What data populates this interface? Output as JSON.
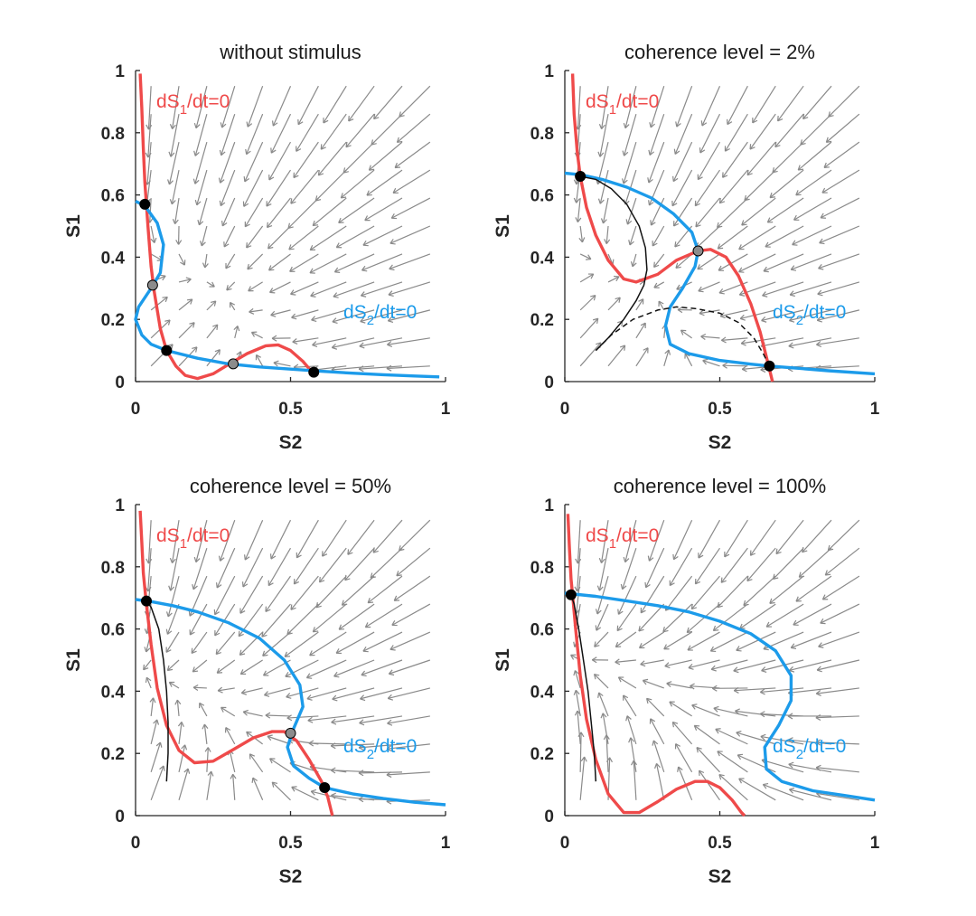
{
  "chart_data": [
    {
      "type": "line",
      "title": "without stimulus",
      "xlabel": "S2",
      "ylabel": "S1",
      "xlim": [
        0,
        1
      ],
      "ylim": [
        0,
        1
      ],
      "xticks": [
        "0",
        "0.5",
        "1"
      ],
      "yticks": [
        "0",
        "0.2",
        "0.4",
        "0.6",
        "0.8",
        "1"
      ],
      "vector_field": true,
      "series": [
        {
          "name": "dS1/dt=0",
          "color": "#ef4a4a",
          "points": [
            [
              0.015,
              0.99
            ],
            [
              0.02,
              0.88
            ],
            [
              0.025,
              0.75
            ],
            [
              0.03,
              0.64
            ],
            [
              0.04,
              0.5
            ],
            [
              0.05,
              0.37
            ],
            [
              0.06,
              0.29
            ],
            [
              0.08,
              0.17
            ],
            [
              0.1,
              0.1
            ],
            [
              0.13,
              0.05
            ],
            [
              0.16,
              0.02
            ],
            [
              0.2,
              0.01
            ],
            [
              0.25,
              0.025
            ],
            [
              0.3,
              0.055
            ],
            [
              0.36,
              0.09
            ],
            [
              0.42,
              0.115
            ],
            [
              0.46,
              0.118
            ],
            [
              0.5,
              0.1
            ],
            [
              0.54,
              0.065
            ],
            [
              0.57,
              0.03
            ],
            [
              0.58,
              0.02
            ]
          ]
        },
        {
          "name": "dS2/dt=0",
          "color": "#1c9bea",
          "points": [
            [
              0.0,
              0.58
            ],
            [
              0.03,
              0.565
            ],
            [
              0.07,
              0.51
            ],
            [
              0.09,
              0.44
            ],
            [
              0.08,
              0.35
            ],
            [
              0.05,
              0.3
            ],
            [
              0.01,
              0.24
            ],
            [
              0.0,
              0.2
            ],
            [
              0.02,
              0.15
            ],
            [
              0.05,
              0.12
            ],
            [
              0.1,
              0.1
            ],
            [
              0.2,
              0.075
            ],
            [
              0.3,
              0.057
            ],
            [
              0.4,
              0.047
            ],
            [
              0.5,
              0.04
            ],
            [
              0.6,
              0.033
            ],
            [
              0.7,
              0.027
            ],
            [
              0.8,
              0.022
            ],
            [
              0.9,
              0.018
            ],
            [
              0.98,
              0.015
            ]
          ]
        }
      ],
      "fixed_points": [
        {
          "x": 0.03,
          "y": 0.57,
          "stable": true
        },
        {
          "x": 0.055,
          "y": 0.31,
          "stable": false
        },
        {
          "x": 0.1,
          "y": 0.1,
          "stable": true
        },
        {
          "x": 0.315,
          "y": 0.057,
          "stable": false
        },
        {
          "x": 0.575,
          "y": 0.03,
          "stable": true
        }
      ],
      "trajectories": []
    },
    {
      "type": "line",
      "title": "coherence level = 2%",
      "xlabel": "S2",
      "ylabel": "S1",
      "xlim": [
        0,
        1
      ],
      "ylim": [
        0,
        1
      ],
      "xticks": [
        "0",
        "0.5",
        "1"
      ],
      "yticks": [
        "0",
        "0.2",
        "0.4",
        "0.6",
        "0.8",
        "1"
      ],
      "vector_field": true,
      "series": [
        {
          "name": "dS1/dt=0",
          "color": "#ef4a4a",
          "points": [
            [
              0.025,
              0.99
            ],
            [
              0.03,
              0.86
            ],
            [
              0.04,
              0.74
            ],
            [
              0.05,
              0.66
            ],
            [
              0.07,
              0.56
            ],
            [
              0.1,
              0.47
            ],
            [
              0.14,
              0.39
            ],
            [
              0.19,
              0.33
            ],
            [
              0.23,
              0.32
            ],
            [
              0.3,
              0.345
            ],
            [
              0.36,
              0.39
            ],
            [
              0.43,
              0.42
            ],
            [
              0.47,
              0.425
            ],
            [
              0.52,
              0.4
            ],
            [
              0.56,
              0.34
            ],
            [
              0.6,
              0.25
            ],
            [
              0.63,
              0.16
            ],
            [
              0.65,
              0.08
            ],
            [
              0.66,
              0.04
            ],
            [
              0.67,
              0.0
            ]
          ]
        },
        {
          "name": "dS2/dt=0",
          "color": "#1c9bea",
          "points": [
            [
              0.0,
              0.67
            ],
            [
              0.05,
              0.665
            ],
            [
              0.12,
              0.65
            ],
            [
              0.2,
              0.625
            ],
            [
              0.28,
              0.59
            ],
            [
              0.35,
              0.54
            ],
            [
              0.41,
              0.48
            ],
            [
              0.43,
              0.42
            ],
            [
              0.42,
              0.37
            ],
            [
              0.38,
              0.3
            ],
            [
              0.34,
              0.24
            ],
            [
              0.325,
              0.18
            ],
            [
              0.34,
              0.12
            ],
            [
              0.4,
              0.09
            ],
            [
              0.5,
              0.068
            ],
            [
              0.6,
              0.056
            ],
            [
              0.66,
              0.05
            ],
            [
              0.75,
              0.043
            ],
            [
              0.85,
              0.035
            ],
            [
              1.0,
              0.025
            ]
          ]
        }
      ],
      "fixed_points": [
        {
          "x": 0.05,
          "y": 0.66,
          "stable": true
        },
        {
          "x": 0.43,
          "y": 0.42,
          "stable": false
        },
        {
          "x": 0.66,
          "y": 0.05,
          "stable": true
        }
      ],
      "trajectories": [
        {
          "style": "solid",
          "points": [
            [
              0.1,
              0.1
            ],
            [
              0.14,
              0.14
            ],
            [
              0.19,
              0.2
            ],
            [
              0.23,
              0.26
            ],
            [
              0.255,
              0.31
            ],
            [
              0.265,
              0.36
            ],
            [
              0.26,
              0.43
            ],
            [
              0.24,
              0.5
            ],
            [
              0.2,
              0.57
            ],
            [
              0.15,
              0.62
            ],
            [
              0.1,
              0.65
            ],
            [
              0.05,
              0.66
            ]
          ]
        },
        {
          "style": "dashed",
          "points": [
            [
              0.1,
              0.1
            ],
            [
              0.15,
              0.15
            ],
            [
              0.22,
              0.2
            ],
            [
              0.3,
              0.23
            ],
            [
              0.36,
              0.24
            ],
            [
              0.42,
              0.235
            ],
            [
              0.5,
              0.22
            ],
            [
              0.56,
              0.19
            ],
            [
              0.61,
              0.14
            ],
            [
              0.64,
              0.09
            ],
            [
              0.66,
              0.05
            ]
          ]
        }
      ]
    },
    {
      "type": "line",
      "title": "coherence level = 50%",
      "xlabel": "S2",
      "ylabel": "S1",
      "xlim": [
        0,
        1
      ],
      "ylim": [
        0,
        1
      ],
      "xticks": [
        "0",
        "0.5",
        "1"
      ],
      "yticks": [
        "0",
        "0.2",
        "0.4",
        "0.6",
        "0.8",
        "1"
      ],
      "vector_field": true,
      "series": [
        {
          "name": "dS1/dt=0",
          "color": "#ef4a4a",
          "points": [
            [
              0.015,
              0.98
            ],
            [
              0.02,
              0.88
            ],
            [
              0.025,
              0.78
            ],
            [
              0.035,
              0.68
            ],
            [
              0.05,
              0.55
            ],
            [
              0.07,
              0.41
            ],
            [
              0.1,
              0.29
            ],
            [
              0.14,
              0.21
            ],
            [
              0.19,
              0.17
            ],
            [
              0.25,
              0.175
            ],
            [
              0.32,
              0.215
            ],
            [
              0.38,
              0.25
            ],
            [
              0.44,
              0.27
            ],
            [
              0.48,
              0.27
            ],
            [
              0.52,
              0.24
            ],
            [
              0.56,
              0.18
            ],
            [
              0.6,
              0.11
            ],
            [
              0.62,
              0.06
            ],
            [
              0.635,
              0.0
            ]
          ]
        },
        {
          "name": "dS2/dt=0",
          "color": "#1c9bea",
          "points": [
            [
              0.0,
              0.695
            ],
            [
              0.05,
              0.688
            ],
            [
              0.12,
              0.675
            ],
            [
              0.2,
              0.655
            ],
            [
              0.3,
              0.62
            ],
            [
              0.4,
              0.57
            ],
            [
              0.48,
              0.5
            ],
            [
              0.53,
              0.42
            ],
            [
              0.54,
              0.35
            ],
            [
              0.51,
              0.28
            ],
            [
              0.49,
              0.22
            ],
            [
              0.51,
              0.16
            ],
            [
              0.56,
              0.12
            ],
            [
              0.61,
              0.09
            ],
            [
              0.7,
              0.07
            ],
            [
              0.8,
              0.055
            ],
            [
              0.9,
              0.043
            ],
            [
              1.0,
              0.035
            ]
          ]
        }
      ],
      "fixed_points": [
        {
          "x": 0.035,
          "y": 0.69,
          "stable": true
        },
        {
          "x": 0.5,
          "y": 0.265,
          "stable": false
        },
        {
          "x": 0.61,
          "y": 0.09,
          "stable": true
        }
      ],
      "trajectories": [
        {
          "style": "solid",
          "points": [
            [
              0.1,
              0.11
            ],
            [
              0.105,
              0.2
            ],
            [
              0.105,
              0.3
            ],
            [
              0.1,
              0.4
            ],
            [
              0.09,
              0.5
            ],
            [
              0.075,
              0.6
            ],
            [
              0.05,
              0.67
            ],
            [
              0.035,
              0.69
            ]
          ]
        }
      ]
    },
    {
      "type": "line",
      "title": "coherence level = 100%",
      "xlabel": "S2",
      "ylabel": "S1",
      "xlim": [
        0,
        1
      ],
      "ylim": [
        0,
        1
      ],
      "xticks": [
        "0",
        "0.5",
        "1"
      ],
      "yticks": [
        "0",
        "0.2",
        "0.4",
        "0.6",
        "0.8",
        "1"
      ],
      "vector_field": true,
      "series": [
        {
          "name": "dS1/dt=0",
          "color": "#ef4a4a",
          "points": [
            [
              0.01,
              0.97
            ],
            [
              0.015,
              0.86
            ],
            [
              0.02,
              0.76
            ],
            [
              0.025,
              0.71
            ],
            [
              0.035,
              0.6
            ],
            [
              0.05,
              0.45
            ],
            [
              0.07,
              0.31
            ],
            [
              0.1,
              0.18
            ],
            [
              0.14,
              0.07
            ],
            [
              0.19,
              0.01
            ],
            [
              0.24,
              0.01
            ],
            [
              0.3,
              0.045
            ],
            [
              0.36,
              0.085
            ],
            [
              0.42,
              0.11
            ],
            [
              0.46,
              0.11
            ],
            [
              0.5,
              0.09
            ],
            [
              0.54,
              0.05
            ],
            [
              0.57,
              0.01
            ],
            [
              0.58,
              0.0
            ]
          ]
        },
        {
          "name": "dS2/dt=0",
          "color": "#1c9bea",
          "points": [
            [
              0.0,
              0.715
            ],
            [
              0.1,
              0.705
            ],
            [
              0.2,
              0.69
            ],
            [
              0.3,
              0.675
            ],
            [
              0.4,
              0.655
            ],
            [
              0.5,
              0.625
            ],
            [
              0.6,
              0.585
            ],
            [
              0.68,
              0.53
            ],
            [
              0.73,
              0.45
            ],
            [
              0.73,
              0.37
            ],
            [
              0.69,
              0.29
            ],
            [
              0.645,
              0.22
            ],
            [
              0.65,
              0.15
            ],
            [
              0.7,
              0.11
            ],
            [
              0.8,
              0.08
            ],
            [
              0.9,
              0.065
            ],
            [
              1.0,
              0.05
            ]
          ]
        }
      ],
      "fixed_points": [
        {
          "x": 0.02,
          "y": 0.71,
          "stable": true
        }
      ],
      "trajectories": [
        {
          "style": "solid",
          "points": [
            [
              0.1,
              0.11
            ],
            [
              0.095,
              0.2
            ],
            [
              0.085,
              0.3
            ],
            [
              0.075,
              0.4
            ],
            [
              0.06,
              0.5
            ],
            [
              0.045,
              0.6
            ],
            [
              0.03,
              0.68
            ],
            [
              0.02,
              0.71
            ]
          ]
        }
      ]
    }
  ]
}
